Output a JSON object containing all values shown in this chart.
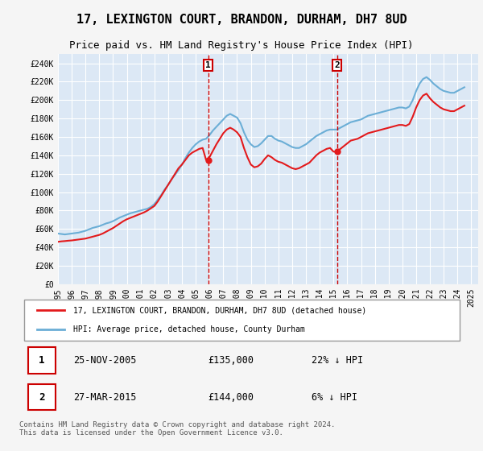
{
  "title": "17, LEXINGTON COURT, BRANDON, DURHAM, DH7 8UD",
  "subtitle": "Price paid vs. HM Land Registry's House Price Index (HPI)",
  "title_fontsize": 11,
  "subtitle_fontsize": 9,
  "bg_color": "#f0f4f8",
  "plot_bg_color": "#dce8f5",
  "grid_color": "#ffffff",
  "ylabel_ticks": [
    "£0",
    "£20K",
    "£40K",
    "£60K",
    "£80K",
    "£100K",
    "£120K",
    "£140K",
    "£160K",
    "£180K",
    "£200K",
    "£220K",
    "£240K"
  ],
  "ytick_values": [
    0,
    20000,
    40000,
    60000,
    80000,
    100000,
    120000,
    140000,
    160000,
    180000,
    200000,
    220000,
    240000
  ],
  "ylim": [
    0,
    250000
  ],
  "xlim_start": 1995.0,
  "xlim_end": 2025.5,
  "x_ticks": [
    1995,
    1996,
    1997,
    1998,
    1999,
    2000,
    2001,
    2002,
    2003,
    2004,
    2005,
    2006,
    2007,
    2008,
    2009,
    2010,
    2011,
    2012,
    2013,
    2014,
    2015,
    2016,
    2017,
    2018,
    2019,
    2020,
    2021,
    2022,
    2023,
    2024,
    2025
  ],
  "hpi_color": "#6baed6",
  "price_color": "#e31a1c",
  "marker1_x": 2005.9,
  "marker1_price": 135000,
  "marker2_x": 2015.25,
  "marker2_price": 144000,
  "legend_label1": "17, LEXINGTON COURT, BRANDON, DURHAM, DH7 8UD (detached house)",
  "legend_label2": "HPI: Average price, detached house, County Durham",
  "annotation1_label": "1",
  "annotation2_label": "2",
  "table_row1": [
    "1",
    "25-NOV-2005",
    "£135,000",
    "22% ↓ HPI"
  ],
  "table_row2": [
    "2",
    "27-MAR-2015",
    "£144,000",
    "6% ↓ HPI"
  ],
  "footnote": "Contains HM Land Registry data © Crown copyright and database right 2024.\nThis data is licensed under the Open Government Licence v3.0.",
  "hpi_data": {
    "x": [
      1995.0,
      1995.25,
      1995.5,
      1995.75,
      1996.0,
      1996.25,
      1996.5,
      1996.75,
      1997.0,
      1997.25,
      1997.5,
      1997.75,
      1998.0,
      1998.25,
      1998.5,
      1998.75,
      1999.0,
      1999.25,
      1999.5,
      1999.75,
      2000.0,
      2000.25,
      2000.5,
      2000.75,
      2001.0,
      2001.25,
      2001.5,
      2001.75,
      2002.0,
      2002.25,
      2002.5,
      2002.75,
      2003.0,
      2003.25,
      2003.5,
      2003.75,
      2004.0,
      2004.25,
      2004.5,
      2004.75,
      2005.0,
      2005.25,
      2005.5,
      2005.75,
      2006.0,
      2006.25,
      2006.5,
      2006.75,
      2007.0,
      2007.25,
      2007.5,
      2007.75,
      2008.0,
      2008.25,
      2008.5,
      2008.75,
      2009.0,
      2009.25,
      2009.5,
      2009.75,
      2010.0,
      2010.25,
      2010.5,
      2010.75,
      2011.0,
      2011.25,
      2011.5,
      2011.75,
      2012.0,
      2012.25,
      2012.5,
      2012.75,
      2013.0,
      2013.25,
      2013.5,
      2013.75,
      2014.0,
      2014.25,
      2014.5,
      2014.75,
      2015.0,
      2015.25,
      2015.5,
      2015.75,
      2016.0,
      2016.25,
      2016.5,
      2016.75,
      2017.0,
      2017.25,
      2017.5,
      2017.75,
      2018.0,
      2018.25,
      2018.5,
      2018.75,
      2019.0,
      2019.25,
      2019.5,
      2019.75,
      2020.0,
      2020.25,
      2020.5,
      2020.75,
      2021.0,
      2021.25,
      2021.5,
      2021.75,
      2022.0,
      2022.25,
      2022.5,
      2022.75,
      2023.0,
      2023.25,
      2023.5,
      2023.75,
      2024.0,
      2024.25,
      2024.5
    ],
    "y": [
      55000,
      54500,
      54000,
      54500,
      55000,
      55500,
      56000,
      57000,
      58000,
      59500,
      61000,
      62000,
      63000,
      64500,
      66000,
      67000,
      68500,
      70500,
      72500,
      74000,
      75500,
      77000,
      78000,
      79000,
      80000,
      81000,
      82000,
      84000,
      87000,
      92000,
      97000,
      103000,
      108000,
      114000,
      119000,
      124000,
      130000,
      137000,
      143000,
      148000,
      152000,
      155000,
      157000,
      158000,
      162000,
      167000,
      171000,
      175000,
      179000,
      183000,
      185000,
      183000,
      181000,
      175000,
      165000,
      157000,
      152000,
      149000,
      150000,
      153000,
      157000,
      161000,
      161000,
      158000,
      156000,
      155000,
      153000,
      151000,
      149000,
      148000,
      148000,
      150000,
      152000,
      155000,
      158000,
      161000,
      163000,
      165000,
      167000,
      168000,
      168000,
      168000,
      170000,
      172000,
      174000,
      176000,
      177000,
      178000,
      179000,
      181000,
      183000,
      184000,
      185000,
      186000,
      187000,
      188000,
      189000,
      190000,
      191000,
      192000,
      192000,
      191000,
      193000,
      200000,
      210000,
      218000,
      223000,
      225000,
      222000,
      218000,
      215000,
      212000,
      210000,
      209000,
      208000,
      208000,
      210000,
      212000,
      214000
    ]
  },
  "price_data": {
    "x": [
      1995.0,
      1995.25,
      1995.5,
      1995.75,
      1996.0,
      1996.25,
      1996.5,
      1996.75,
      1997.0,
      1997.25,
      1997.5,
      1997.75,
      1998.0,
      1998.25,
      1998.5,
      1998.75,
      1999.0,
      1999.25,
      1999.5,
      1999.75,
      2000.0,
      2000.25,
      2000.5,
      2000.75,
      2001.0,
      2001.25,
      2001.5,
      2001.75,
      2002.0,
      2002.25,
      2002.5,
      2002.75,
      2003.0,
      2003.25,
      2003.5,
      2003.75,
      2004.0,
      2004.25,
      2004.5,
      2004.75,
      2005.0,
      2005.25,
      2005.5,
      2005.75,
      2006.0,
      2006.25,
      2006.5,
      2006.75,
      2007.0,
      2007.25,
      2007.5,
      2007.75,
      2008.0,
      2008.25,
      2008.5,
      2008.75,
      2009.0,
      2009.25,
      2009.5,
      2009.75,
      2010.0,
      2010.25,
      2010.5,
      2010.75,
      2011.0,
      2011.25,
      2011.5,
      2011.75,
      2012.0,
      2012.25,
      2012.5,
      2012.75,
      2013.0,
      2013.25,
      2013.5,
      2013.75,
      2014.0,
      2014.25,
      2014.5,
      2014.75,
      2015.0,
      2015.25,
      2015.5,
      2015.75,
      2016.0,
      2016.25,
      2016.5,
      2016.75,
      2017.0,
      2017.25,
      2017.5,
      2017.75,
      2018.0,
      2018.25,
      2018.5,
      2018.75,
      2019.0,
      2019.25,
      2019.5,
      2019.75,
      2020.0,
      2020.25,
      2020.5,
      2020.75,
      2021.0,
      2021.25,
      2021.5,
      2021.75,
      2022.0,
      2022.25,
      2022.5,
      2022.75,
      2023.0,
      2023.25,
      2023.5,
      2023.75,
      2024.0,
      2024.25,
      2024.5
    ],
    "y": [
      46000,
      46500,
      46800,
      47200,
      47500,
      48000,
      48500,
      49000,
      49500,
      50500,
      51500,
      52500,
      53500,
      55000,
      57000,
      59000,
      61000,
      63500,
      66000,
      68500,
      70500,
      72000,
      73500,
      75000,
      76500,
      78000,
      80000,
      82500,
      85000,
      90000,
      96000,
      102000,
      108000,
      114000,
      120000,
      126000,
      130000,
      135000,
      140000,
      143000,
      145000,
      147000,
      148000,
      135000,
      138000,
      145000,
      152000,
      158000,
      164000,
      168000,
      170000,
      168000,
      165000,
      160000,
      148000,
      138000,
      130000,
      127000,
      128000,
      131000,
      136000,
      140000,
      138000,
      135000,
      133000,
      132000,
      130000,
      128000,
      126000,
      125000,
      126000,
      128000,
      130000,
      132000,
      136000,
      140000,
      143000,
      145000,
      147000,
      148000,
      144000,
      144000,
      147000,
      150000,
      153000,
      156000,
      157000,
      158000,
      160000,
      162000,
      164000,
      165000,
      166000,
      167000,
      168000,
      169000,
      170000,
      171000,
      172000,
      173000,
      173000,
      172000,
      174000,
      182000,
      192000,
      200000,
      205000,
      207000,
      202000,
      198000,
      195000,
      192000,
      190000,
      189000,
      188000,
      188000,
      190000,
      192000,
      194000
    ]
  }
}
